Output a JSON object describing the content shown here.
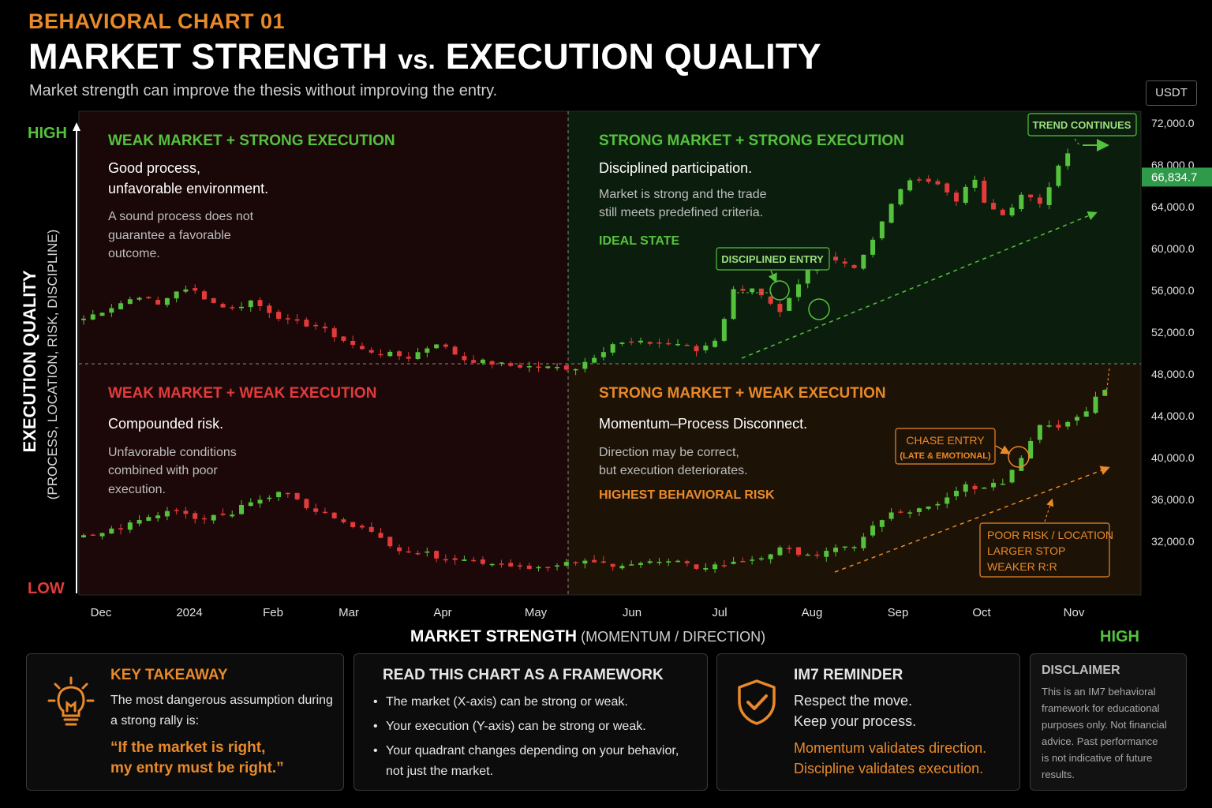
{
  "header": {
    "kicker": "BEHAVIORAL CHART 01",
    "title_part1": "MARKET STRENGTH ",
    "title_vs": "vs.",
    "title_part2": " EXECUTION QUALITY",
    "subtitle": "Market strength can improve the thesis without improving the entry.",
    "currency_badge": "USDT"
  },
  "colors": {
    "green": "#55c23e",
    "red": "#e23b3b",
    "orange": "#e8892a",
    "price_tag": "#2f9a4a"
  },
  "quadrants": {
    "top_left": {
      "title": "WEAK MARKET + STRONG EXECUTION",
      "headline1": "Good process,",
      "headline2": "unfavorable environment.",
      "body1": "A sound process does not",
      "body2": "guarantee a favorable",
      "body3": "outcome."
    },
    "top_right": {
      "title": "STRONG MARKET + STRONG EXECUTION",
      "headline1": "Disciplined participation.",
      "body1": "Market is strong and the trade",
      "body2": "still meets predefined criteria.",
      "tag": "IDEAL STATE"
    },
    "bottom_left": {
      "title": "WEAK MARKET + WEAK EXECUTION",
      "headline1": "Compounded risk.",
      "body1": "Unfavorable conditions",
      "body2": "combined with poor",
      "body3": "execution."
    },
    "bottom_right": {
      "title": "STRONG MARKET + WEAK EXECUTION",
      "headline1": "Momentum–Process Disconnect.",
      "body1": "Direction may be correct,",
      "body2": "but execution deteriorates.",
      "tag": "HIGHEST BEHAVIORAL RISK"
    }
  },
  "annotations": {
    "trend_continues": "TREND CONTINUES",
    "disciplined_entry": "DISCIPLINED ENTRY",
    "chase_entry_1": "CHASE ENTRY",
    "chase_entry_2": "(LATE & EMOTIONAL)",
    "poor_risk_1": "POOR RISK / LOCATION",
    "poor_risk_2": "LARGER STOP",
    "poor_risk_3": "WEAKER R:R"
  },
  "axes": {
    "y_title": "EXECUTION QUALITY",
    "y_subtitle": "(PROCESS, LOCATION, RISK, DISCIPLINE)",
    "y_high": "HIGH",
    "y_low": "LOW",
    "x_title_bold": "MARKET STRENGTH",
    "x_title_rest": " (MOMENTUM / DIRECTION)",
    "x_high": "HIGH"
  },
  "chart_data": {
    "type": "candlestick",
    "x_tick_labels": [
      "Dec",
      "2024",
      "Feb",
      "Mar",
      "Apr",
      "May",
      "Jun",
      "Jul",
      "Aug",
      "Sep",
      "Oct",
      "Nov"
    ],
    "y_tick_labels": [
      "72,000.0",
      "68,000.0",
      "64,000.0",
      "60,000.0",
      "56,000.0",
      "52,000.0",
      "48,000.0",
      "44,000.0",
      "40,000.0",
      "36,000.0",
      "32,000.0"
    ],
    "y_ticks": [
      72000,
      68000,
      64000,
      60000,
      56000,
      52000,
      48000,
      44000,
      40000,
      36000,
      32000
    ],
    "current_price_label": "66,834.7",
    "current_price": 66834.7,
    "series": [
      {
        "panel": "upper",
        "points": [
          [
            0,
            53300
          ],
          [
            4,
            54800
          ],
          [
            6,
            55500
          ],
          [
            8,
            54600
          ],
          [
            10,
            56000
          ],
          [
            12,
            55900
          ],
          [
            14,
            54800
          ],
          [
            16,
            54200
          ],
          [
            18,
            55000
          ],
          [
            19,
            54500
          ],
          [
            22,
            53000
          ],
          [
            25,
            52600
          ],
          [
            30,
            50300
          ],
          [
            35,
            49600
          ],
          [
            38,
            51000
          ],
          [
            41,
            49400
          ],
          [
            46,
            48800
          ],
          [
            50,
            48600
          ],
          [
            53,
            48600
          ],
          [
            57,
            50900
          ],
          [
            62,
            51000
          ],
          [
            64,
            50900
          ],
          [
            66,
            50200
          ],
          [
            68,
            51300
          ],
          [
            69,
            53400
          ],
          [
            70,
            56000
          ],
          [
            72,
            56300
          ],
          [
            73,
            55400
          ],
          [
            75,
            53700
          ],
          [
            77,
            56400
          ],
          [
            79,
            59400
          ],
          [
            81,
            59100
          ],
          [
            83,
            58200
          ],
          [
            85,
            60900
          ],
          [
            86,
            62500
          ],
          [
            88,
            65800
          ],
          [
            90,
            66800
          ],
          [
            92,
            66100
          ],
          [
            94,
            64700
          ],
          [
            96,
            66600
          ],
          [
            97,
            64200
          ],
          [
            99,
            63200
          ],
          [
            101,
            65000
          ],
          [
            103,
            64400
          ],
          [
            104,
            66100
          ],
          [
            105,
            68100
          ],
          [
            106,
            69000
          ]
        ]
      },
      {
        "panel": "lower",
        "points": [
          [
            0,
            32400
          ],
          [
            4,
            33300
          ],
          [
            6,
            34000
          ],
          [
            10,
            35100
          ],
          [
            12,
            34200
          ],
          [
            16,
            34800
          ],
          [
            19,
            36100
          ],
          [
            22,
            36700
          ],
          [
            24,
            35100
          ],
          [
            27,
            34400
          ],
          [
            30,
            33200
          ],
          [
            34,
            31300
          ],
          [
            38,
            30600
          ],
          [
            42,
            30100
          ],
          [
            46,
            29800
          ],
          [
            50,
            29400
          ],
          [
            53,
            30000
          ],
          [
            57,
            29800
          ],
          [
            62,
            30000
          ],
          [
            64,
            29900
          ],
          [
            66,
            29500
          ],
          [
            70,
            29900
          ],
          [
            73,
            30500
          ],
          [
            75,
            31200
          ],
          [
            79,
            30700
          ],
          [
            83,
            31600
          ],
          [
            85,
            33400
          ],
          [
            87,
            34600
          ],
          [
            90,
            35000
          ],
          [
            92,
            35400
          ],
          [
            95,
            37400
          ],
          [
            97,
            37000
          ],
          [
            99,
            37700
          ],
          [
            101,
            40000
          ],
          [
            103,
            43300
          ],
          [
            105,
            43000
          ],
          [
            108,
            44600
          ],
          [
            109,
            46000
          ],
          [
            110,
            46600
          ]
        ]
      }
    ]
  },
  "cards": {
    "takeaway": {
      "title": "KEY TAKEAWAY",
      "line1": "The most dangerous assumption during",
      "line2": "a strong rally is:",
      "quote1": "“If the market is right,",
      "quote2": "my entry must be right.”"
    },
    "framework": {
      "title": "READ THIS CHART AS A FRAMEWORK",
      "b1": "The market (X-axis) can be strong or weak.",
      "b2": "Your execution (Y-axis) can be strong or weak.",
      "b3a": "Your quadrant changes depending on your behavior,",
      "b3b": "not just the market."
    },
    "reminder": {
      "title": "IM7 REMINDER",
      "line1": "Respect the move.",
      "line2": "Keep your process.",
      "line3": "Momentum validates direction.",
      "line4": "Discipline validates execution."
    },
    "disclaimer": {
      "title": "DISCLAIMER",
      "l1": "This is an IM7 behavioral",
      "l2": "framework for educational",
      "l3": "purposes only. Not financial",
      "l4": "advice. Past performance",
      "l5": "is not indicative of future",
      "l6": "results."
    }
  }
}
